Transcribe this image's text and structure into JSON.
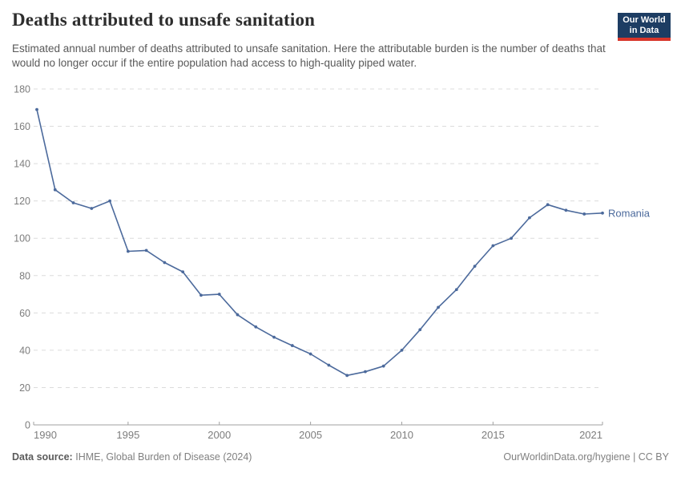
{
  "header": {
    "title": "Deaths attributed to unsafe sanitation",
    "subtitle": "Estimated annual number of deaths attributed to unsafe sanitation. Here the attributable burden is the number of deaths that would no longer occur if the entire population had access to high-quality piped water.",
    "logo": {
      "line1": "Our World",
      "line2": "in Data"
    }
  },
  "chart_data": {
    "type": "line",
    "title": "Deaths attributed to unsafe sanitation",
    "xlabel": "",
    "ylabel": "",
    "xlim": [
      1990,
      2021
    ],
    "ylim": [
      0,
      180
    ],
    "xticks": [
      1990,
      1995,
      2000,
      2005,
      2010,
      2015,
      2021
    ],
    "yticks": [
      0,
      20,
      40,
      60,
      80,
      100,
      120,
      140,
      160,
      180
    ],
    "grid": "horizontal-dashed",
    "legend_position": "end-of-line-label",
    "series": [
      {
        "name": "Romania",
        "color": "#4C6A9C",
        "x": [
          1990,
          1991,
          1992,
          1993,
          1994,
          1995,
          1996,
          1997,
          1998,
          1999,
          2000,
          2001,
          2002,
          2003,
          2004,
          2005,
          2006,
          2007,
          2008,
          2009,
          2010,
          2011,
          2012,
          2013,
          2014,
          2015,
          2016,
          2017,
          2018,
          2019,
          2020,
          2021
        ],
        "values": [
          169,
          126,
          119,
          116,
          120,
          93,
          93.5,
          87,
          82,
          69.5,
          70,
          59,
          52.5,
          47,
          42.5,
          38,
          32,
          26.5,
          28.5,
          31.5,
          40,
          51,
          63,
          72.5,
          85,
          96,
          100,
          111,
          118,
          115,
          113,
          113.5
        ]
      }
    ]
  },
  "footer": {
    "source_label": "Data source:",
    "source_value": "IHME, Global Burden of Disease (2024)",
    "credit": "OurWorldinData.org/hygiene | CC BY"
  },
  "colors": {
    "line": "#4C6A9C",
    "grid": "#dcdcdc",
    "axis": "#a1a1a1",
    "tick_text": "#7d7d7d",
    "logo_bg": "#1d3d63",
    "logo_bar": "#d8352a"
  }
}
